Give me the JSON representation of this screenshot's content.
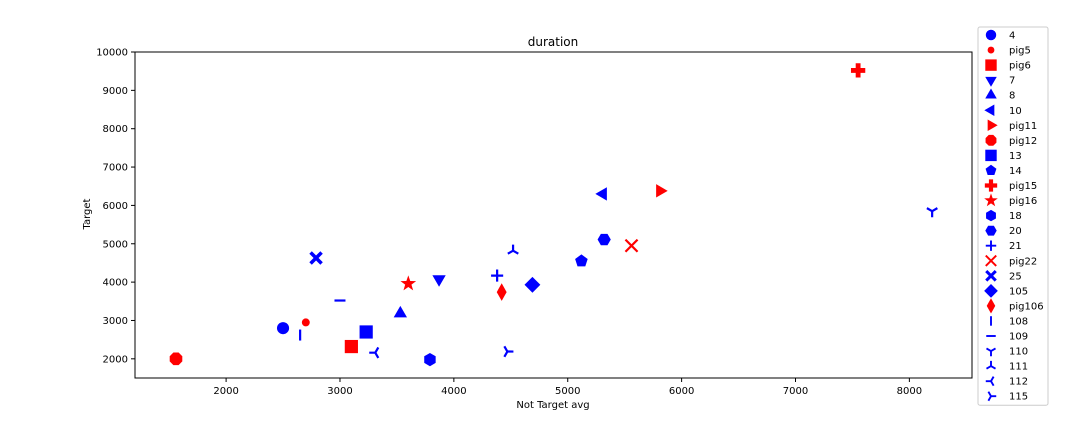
{
  "chart_data": {
    "type": "scatter",
    "title": "duration",
    "xlabel": "Not Target avg",
    "ylabel": "Target",
    "xlim": [
      1200,
      8550
    ],
    "ylim": [
      1500,
      10000
    ],
    "xticks": [
      2000,
      3000,
      4000,
      5000,
      6000,
      7000,
      8000
    ],
    "yticks": [
      2000,
      3000,
      4000,
      5000,
      6000,
      7000,
      8000,
      9000,
      10000
    ],
    "grid": false,
    "legend_position": "right, outside plot",
    "series": [
      {
        "name": "4",
        "marker": "circle",
        "color": "#0000ff",
        "x": 2500,
        "y": 2800
      },
      {
        "name": "pig5",
        "marker": "point",
        "color": "#ff0000",
        "x": 2700,
        "y": 2950
      },
      {
        "name": "pig6",
        "marker": "square",
        "color": "#ff0000",
        "x": 3100,
        "y": 2320
      },
      {
        "name": "7",
        "marker": "triangle-down",
        "color": "#0000ff",
        "x": 3870,
        "y": 4080
      },
      {
        "name": "8",
        "marker": "triangle-up",
        "color": "#0000ff",
        "x": 3530,
        "y": 3180
      },
      {
        "name": "10",
        "marker": "triangle-left",
        "color": "#0000ff",
        "x": 5310,
        "y": 6300
      },
      {
        "name": "pig11",
        "marker": "triangle-right",
        "color": "#ff0000",
        "x": 5810,
        "y": 6380
      },
      {
        "name": "pig12",
        "marker": "octagon",
        "color": "#ff0000",
        "x": 1560,
        "y": 2000
      },
      {
        "name": "13",
        "marker": "square",
        "color": "#0000ff",
        "x": 3230,
        "y": 2700
      },
      {
        "name": "14",
        "marker": "pentagon",
        "color": "#0000ff",
        "x": 5120,
        "y": 4550
      },
      {
        "name": "pig15",
        "marker": "plus-filled",
        "color": "#ff0000",
        "x": 7550,
        "y": 9520
      },
      {
        "name": "pig16",
        "marker": "star",
        "color": "#ff0000",
        "x": 3600,
        "y": 3960
      },
      {
        "name": "18",
        "marker": "hexagon1",
        "color": "#0000ff",
        "x": 3790,
        "y": 1980
      },
      {
        "name": "20",
        "marker": "hexagon2",
        "color": "#0000ff",
        "x": 5320,
        "y": 5110
      },
      {
        "name": "21",
        "marker": "plus",
        "color": "#0000ff",
        "x": 4380,
        "y": 4170
      },
      {
        "name": "pig22",
        "marker": "x",
        "color": "#ff0000",
        "x": 5560,
        "y": 4950
      },
      {
        "name": "25",
        "marker": "x-filled",
        "color": "#0000ff",
        "x": 2790,
        "y": 4630
      },
      {
        "name": "105",
        "marker": "diamond",
        "color": "#0000ff",
        "x": 4690,
        "y": 3930
      },
      {
        "name": "pig106",
        "marker": "thin-diamond",
        "color": "#ff0000",
        "x": 4420,
        "y": 3740
      },
      {
        "name": "108",
        "marker": "vline",
        "color": "#0000ff",
        "x": 2650,
        "y": 2620
      },
      {
        "name": "109",
        "marker": "hline",
        "color": "#0000ff",
        "x": 3000,
        "y": 3520
      },
      {
        "name": "110",
        "marker": "tri-down",
        "color": "#0000ff",
        "x": 8200,
        "y": 5850
      },
      {
        "name": "111",
        "marker": "tri-up",
        "color": "#0000ff",
        "x": 4520,
        "y": 4820
      },
      {
        "name": "112",
        "marker": "tri-left",
        "color": "#0000ff",
        "x": 3310,
        "y": 2160
      },
      {
        "name": "115",
        "marker": "tri-right",
        "color": "#0000ff",
        "x": 4470,
        "y": 2190
      }
    ]
  }
}
